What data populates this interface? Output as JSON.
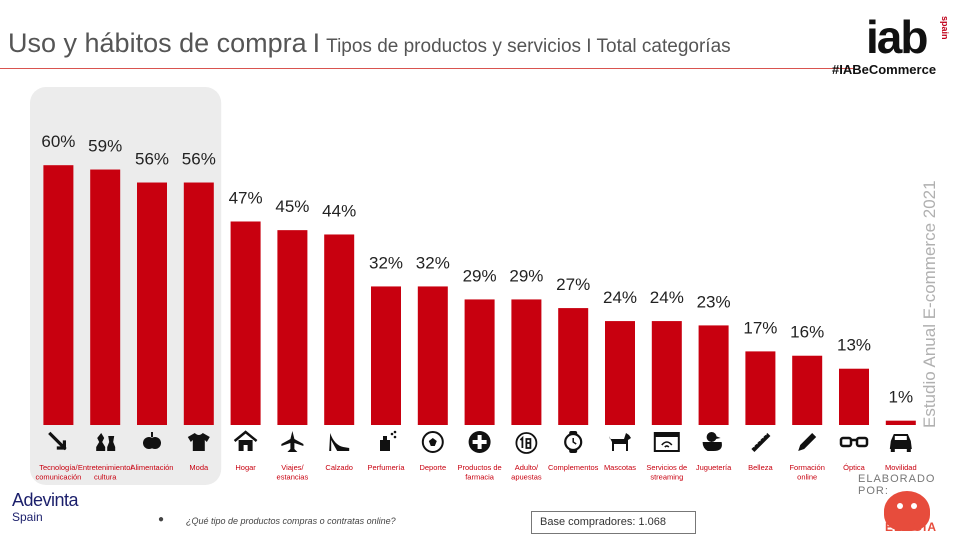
{
  "header": {
    "title_main": "Uso y hábitos de compra",
    "title_sep": "I",
    "title_sub": "Tipos de productos y servicios I Total categorías",
    "logo_text": "iab",
    "logo_sub": "spain",
    "hashtag": "#IABeCommerce"
  },
  "side_text": "Estudio Anual E-commerce  2021",
  "footer": {
    "adevinta": "Adevinta",
    "adevinta_sub": "Spain",
    "bullet": "●",
    "question": "¿Qué tipo de productos compras o contratas online?",
    "base": "Base compradores: 1.068",
    "elaborado": "ELABORADO POR:",
    "elogia": "ELOGIA"
  },
  "colors": {
    "bar": "#c8000f",
    "highlight": "#ececec",
    "accent": "#e74c3c"
  },
  "chart_data": {
    "type": "bar",
    "title": "",
    "xlabel": "",
    "ylabel": "",
    "ylim": [
      0,
      70
    ],
    "grid": false,
    "highlighted_categories": [
      "Tecnología/ comunicación",
      "Entretenimiento/ cultura",
      "Alimentación",
      "Moda"
    ],
    "categories": [
      "Tecnología/ comunicación",
      "Entretenimiento/ cultura",
      "Alimentación",
      "Moda",
      "Hogar",
      "Viajes/ estancias",
      "Calzado",
      "Perfumería",
      "Deporte",
      "Productos de farmacia",
      "Adulto/ apuestas",
      "Complementos",
      "Mascotas",
      "Servicios de streaming",
      "Juguetería",
      "Belleza",
      "Formación online",
      "Óptica",
      "Movilidad"
    ],
    "category_lines": [
      [
        "Tecnología/",
        "comunicación"
      ],
      [
        "Entretenimiento/",
        "cultura"
      ],
      [
        "Alimentación"
      ],
      [
        "Moda"
      ],
      [
        "Hogar"
      ],
      [
        "Viajes/",
        "estancias"
      ],
      [
        "Calzado"
      ],
      [
        "Perfumería"
      ],
      [
        "Deporte"
      ],
      [
        "Productos de",
        "farmacia"
      ],
      [
        "Adulto/",
        "apuestas"
      ],
      [
        "Complementos"
      ],
      [
        "Mascotas"
      ],
      [
        "Servicios de",
        "streaming"
      ],
      [
        "Juguetería"
      ],
      [
        "Belleza"
      ],
      [
        "Formación",
        "online"
      ],
      [
        "Óptica"
      ],
      [
        "Movilidad"
      ]
    ],
    "values": [
      60,
      59,
      56,
      56,
      47,
      45,
      44,
      32,
      32,
      29,
      29,
      27,
      24,
      24,
      23,
      17,
      16,
      13,
      1
    ],
    "value_labels": [
      "60%",
      "59%",
      "56%",
      "56%",
      "47%",
      "45%",
      "44%",
      "32%",
      "32%",
      "29%",
      "29%",
      "27%",
      "24%",
      "24%",
      "23%",
      "17%",
      "16%",
      "13%",
      "1%"
    ],
    "icons": [
      "arrow-cursor-icon",
      "chess-icon",
      "apple-icon",
      "tshirt-icon",
      "house-icon",
      "airplane-icon",
      "high-heel-icon",
      "perfume-icon",
      "soccer-ball-icon",
      "medical-cross-icon",
      "plus-18-icon",
      "watch-icon",
      "dog-icon",
      "streaming-icon",
      "rubber-duck-icon",
      "comb-icon",
      "pencil-icon",
      "glasses-icon",
      "car-icon"
    ]
  }
}
